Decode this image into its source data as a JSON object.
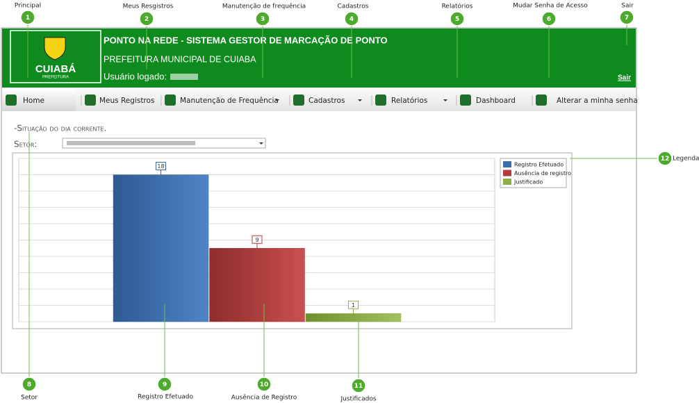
{
  "annotations": [
    {
      "number": "1",
      "label": "Principal"
    },
    {
      "number": "2",
      "label": "Meus Resgistros"
    },
    {
      "number": "3",
      "label": "Manutenção de frequência"
    },
    {
      "number": "4",
      "label": "Cadastros"
    },
    {
      "number": "5",
      "label": "Relatórios"
    },
    {
      "number": "6",
      "label": "Mudar Senha de Acesso"
    },
    {
      "number": "7",
      "label": "Sair"
    },
    {
      "number": "8",
      "label": "Setor"
    },
    {
      "number": "9",
      "label": "Registro Efetuado"
    },
    {
      "number": "10",
      "label": "Ausência de Registro"
    },
    {
      "number": "11",
      "label": "Justificados"
    },
    {
      "number": "12",
      "label": "Legenda"
    }
  ],
  "header": {
    "logo_text": "CUIABÁ",
    "logo_sub": "PREFEITURA",
    "title": "PONTO NA REDE - SISTEMA GESTOR DE MARCAÇÃO DE PONTO",
    "subtitle": "PREFEITURA MUNICIPAL DE CUIABA",
    "user_label": "Usuário logado:",
    "logout": "Sair"
  },
  "menu": [
    "Home",
    "Meus Registros",
    "Manutenção de Frequência",
    "Cadastros",
    "Relatórios",
    "Dashboard",
    "Alterar a minha senha"
  ],
  "section_title": "-Situação do dia corrente.",
  "sector_label": "Setor:",
  "chart_data": {
    "type": "bar",
    "series": [
      {
        "name": "Registro Efetuado",
        "color": "#3c6cab",
        "values": [
          18
        ]
      },
      {
        "name": "Ausência de registro",
        "color": "#b33c3c",
        "values": [
          9
        ]
      },
      {
        "name": "Justificado",
        "color": "#8fae4a",
        "values": [
          1
        ]
      }
    ],
    "ylim": [
      0,
      20
    ],
    "yticks": [
      0,
      2,
      4,
      6,
      8,
      10,
      12,
      14,
      16,
      18,
      20
    ],
    "grid": true,
    "legend": "top-right"
  }
}
